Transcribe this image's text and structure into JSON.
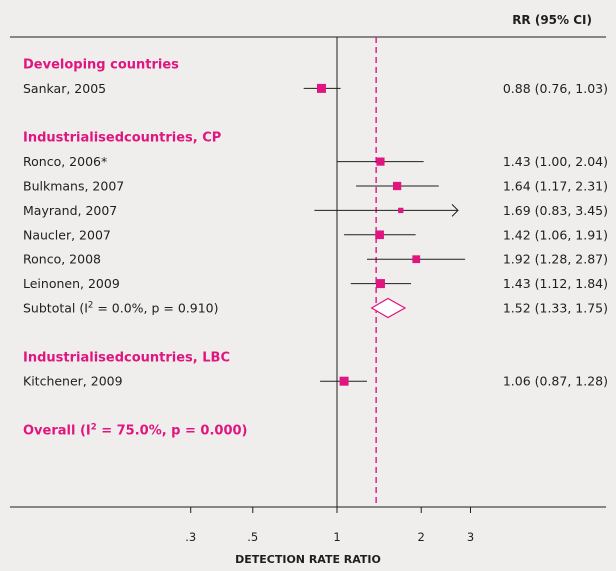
{
  "colors": {
    "accent": "#e0157f",
    "text": "#1f1f1f",
    "background": "#efeeed"
  },
  "chart_data": {
    "type": "forest",
    "header": "RR (95% CI)",
    "xlabel": "DETECTION RATE RATIO",
    "scale": "log",
    "x_ticks": [
      0.3,
      0.5,
      1,
      2,
      3
    ],
    "x_tick_labels": [
      ".3",
      ".5",
      "1",
      "2",
      "3"
    ],
    "null_line": 1,
    "overall_estimate": 1.38,
    "groups": [
      {
        "name": "Developing countries",
        "studies": [
          {
            "label": "Sankar, 2005",
            "rr": 0.88,
            "low": 0.76,
            "high": 1.03,
            "text": "0.88 (0.76, 1.03)"
          }
        ]
      },
      {
        "name": "Industrialisedcountries, CP",
        "studies": [
          {
            "label": "Ronco, 2006*",
            "rr": 1.43,
            "low": 1.0,
            "high": 2.04,
            "text": "1.43 (1.00, 2.04)"
          },
          {
            "label": "Bulkmans, 2007",
            "rr": 1.64,
            "low": 1.17,
            "high": 2.31,
            "text": "1.64 (1.17, 2.31)"
          },
          {
            "label": "Mayrand, 2007",
            "rr": 1.69,
            "low": 0.83,
            "high": 3.45,
            "text": "1.69 (0.83, 3.45)",
            "arrow_right": true
          },
          {
            "label": "Naucler, 2007",
            "rr": 1.42,
            "low": 1.06,
            "high": 1.91,
            "text": "1.42 (1.06, 1.91)"
          },
          {
            "label": "Ronco, 2008",
            "rr": 1.92,
            "low": 1.28,
            "high": 2.87,
            "text": "1.92 (1.28, 2.87)"
          },
          {
            "label": "Leinonen, 2009",
            "rr": 1.43,
            "low": 1.12,
            "high": 1.84,
            "text": "1.43 (1.12, 1.84)"
          }
        ],
        "subtotal": {
          "label_prefix": "Subtotal  (I",
          "sup": "2",
          "label_suffix": " = 0.0%, p = 0.910)",
          "rr": 1.52,
          "low": 1.33,
          "high": 1.75,
          "text": "1.52 (1.33, 1.75)"
        }
      },
      {
        "name": "Industrialisedcountries, LBC",
        "studies": [
          {
            "label": "Kitchener, 2009",
            "rr": 1.06,
            "low": 0.87,
            "high": 1.28,
            "text": "1.06 (0.87, 1.28)"
          }
        ]
      }
    ],
    "overall": {
      "label_prefix": "Overall  (I",
      "sup": "2",
      "label_suffix": " = 75.0%, p = 0.000)"
    }
  }
}
